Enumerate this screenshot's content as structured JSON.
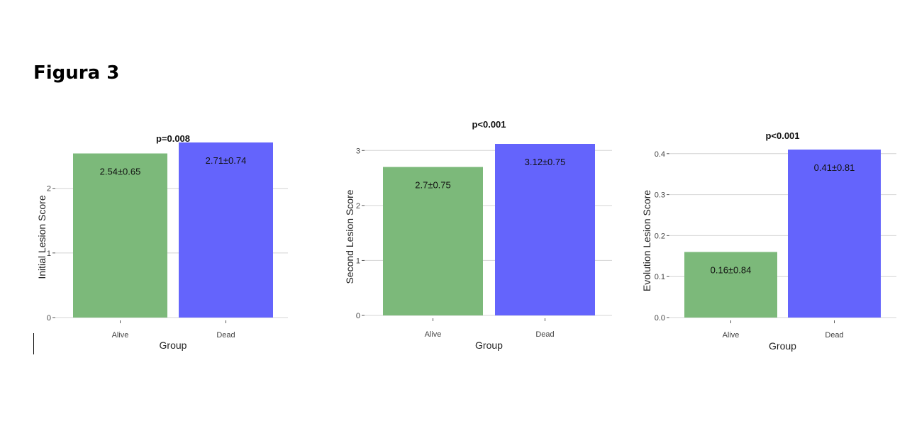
{
  "figure": {
    "title": "Figura 3"
  },
  "chart_data": [
    {
      "type": "bar",
      "annotation": "p=0.008",
      "categories": [
        "Alive",
        "Dead"
      ],
      "values": [
        2.54,
        2.71
      ],
      "value_labels": [
        "2.54±0.65",
        "2.71±0.74"
      ],
      "colors": [
        "#7cb97a",
        "#6464fc"
      ],
      "xlabel": "Group",
      "ylabel": "Initial Lesion Score",
      "yticks": [
        0,
        1,
        2
      ],
      "ylim": [
        0,
        2.71
      ],
      "grid": true
    },
    {
      "type": "bar",
      "annotation": "p<0.001",
      "categories": [
        "Alive",
        "Dead"
      ],
      "values": [
        2.7,
        3.12
      ],
      "value_labels": [
        "2.7±0.75",
        "3.12±0.75"
      ],
      "colors": [
        "#7cb97a",
        "#6464fc"
      ],
      "xlabel": "Group",
      "ylabel": "Second Lesion Score",
      "yticks": [
        0,
        1,
        2,
        3
      ],
      "ylim": [
        0,
        3.12
      ],
      "grid": true
    },
    {
      "type": "bar",
      "annotation": "p<0.001",
      "categories": [
        "Alive",
        "Dead"
      ],
      "values": [
        0.16,
        0.41
      ],
      "value_labels": [
        "0.16±0.84",
        "0.41±0.81"
      ],
      "colors": [
        "#7cb97a",
        "#6464fc"
      ],
      "xlabel": "Group",
      "ylabel": "Evolution Lesion Score",
      "yticks": [
        0.0,
        0.1,
        0.2,
        0.3,
        0.4
      ],
      "ytick_labels": [
        "0.0",
        "0.1",
        "0.2",
        "0.3",
        "0.4"
      ],
      "ylim": [
        0,
        0.41
      ],
      "grid": true
    }
  ]
}
